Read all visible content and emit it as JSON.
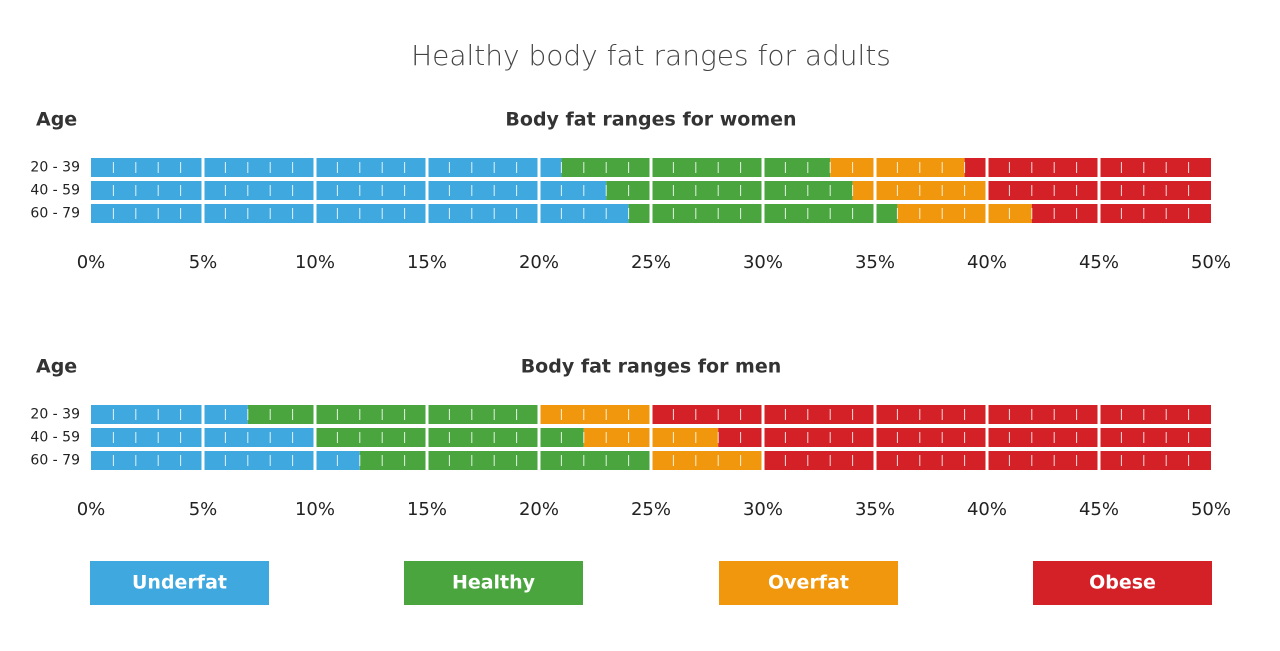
{
  "title": "Healthy body fat ranges for adults",
  "chart_data": [
    {
      "type": "bar",
      "orientation": "horizontal",
      "stacked": true,
      "title": "Body fat ranges for women",
      "y_label": "Age",
      "categories": [
        "20 - 39",
        "40 - 59",
        "60 - 79"
      ],
      "series": [
        {
          "name": "Underfat",
          "color": "#3fa9df",
          "values": [
            21,
            23,
            24
          ]
        },
        {
          "name": "Healthy",
          "color": "#4aa53f",
          "values": [
            12,
            11,
            12
          ]
        },
        {
          "name": "Overfat",
          "color": "#f0970e",
          "values": [
            6,
            6,
            6
          ]
        },
        {
          "name": "Obese",
          "color": "#d42027",
          "values": [
            11,
            10,
            8
          ]
        }
      ],
      "xlim": [
        0,
        50
      ],
      "xticks": [
        {
          "value": 0,
          "label": "0%"
        },
        {
          "value": 5,
          "label": "5%"
        },
        {
          "value": 10,
          "label": "10%"
        },
        {
          "value": 15,
          "label": "15%"
        },
        {
          "value": 20,
          "label": "20%"
        },
        {
          "value": 25,
          "label": "25%"
        },
        {
          "value": 30,
          "label": "30%"
        },
        {
          "value": 35,
          "label": "35%"
        },
        {
          "value": 40,
          "label": "40%"
        },
        {
          "value": 45,
          "label": "45%"
        },
        {
          "value": 50,
          "label": "50%"
        }
      ]
    },
    {
      "type": "bar",
      "orientation": "horizontal",
      "stacked": true,
      "title": "Body fat ranges for men",
      "y_label": "Age",
      "categories": [
        "20 - 39",
        "40 - 59",
        "60 - 79"
      ],
      "series": [
        {
          "name": "Underfat",
          "color": "#3fa9df",
          "values": [
            7,
            10,
            12
          ]
        },
        {
          "name": "Healthy",
          "color": "#4aa53f",
          "values": [
            13,
            12,
            13
          ]
        },
        {
          "name": "Overfat",
          "color": "#f0970e",
          "values": [
            5,
            6,
            5
          ]
        },
        {
          "name": "Obese",
          "color": "#d42027",
          "values": [
            25,
            22,
            20
          ]
        }
      ],
      "xlim": [
        0,
        50
      ],
      "xticks": [
        {
          "value": 0,
          "label": "0%"
        },
        {
          "value": 5,
          "label": "5%"
        },
        {
          "value": 10,
          "label": "10%"
        },
        {
          "value": 15,
          "label": "15%"
        },
        {
          "value": 20,
          "label": "20%"
        },
        {
          "value": 25,
          "label": "25%"
        },
        {
          "value": 30,
          "label": "30%"
        },
        {
          "value": 35,
          "label": "35%"
        },
        {
          "value": 40,
          "label": "40%"
        },
        {
          "value": 45,
          "label": "45%"
        },
        {
          "value": 50,
          "label": "50%"
        }
      ]
    }
  ]
}
